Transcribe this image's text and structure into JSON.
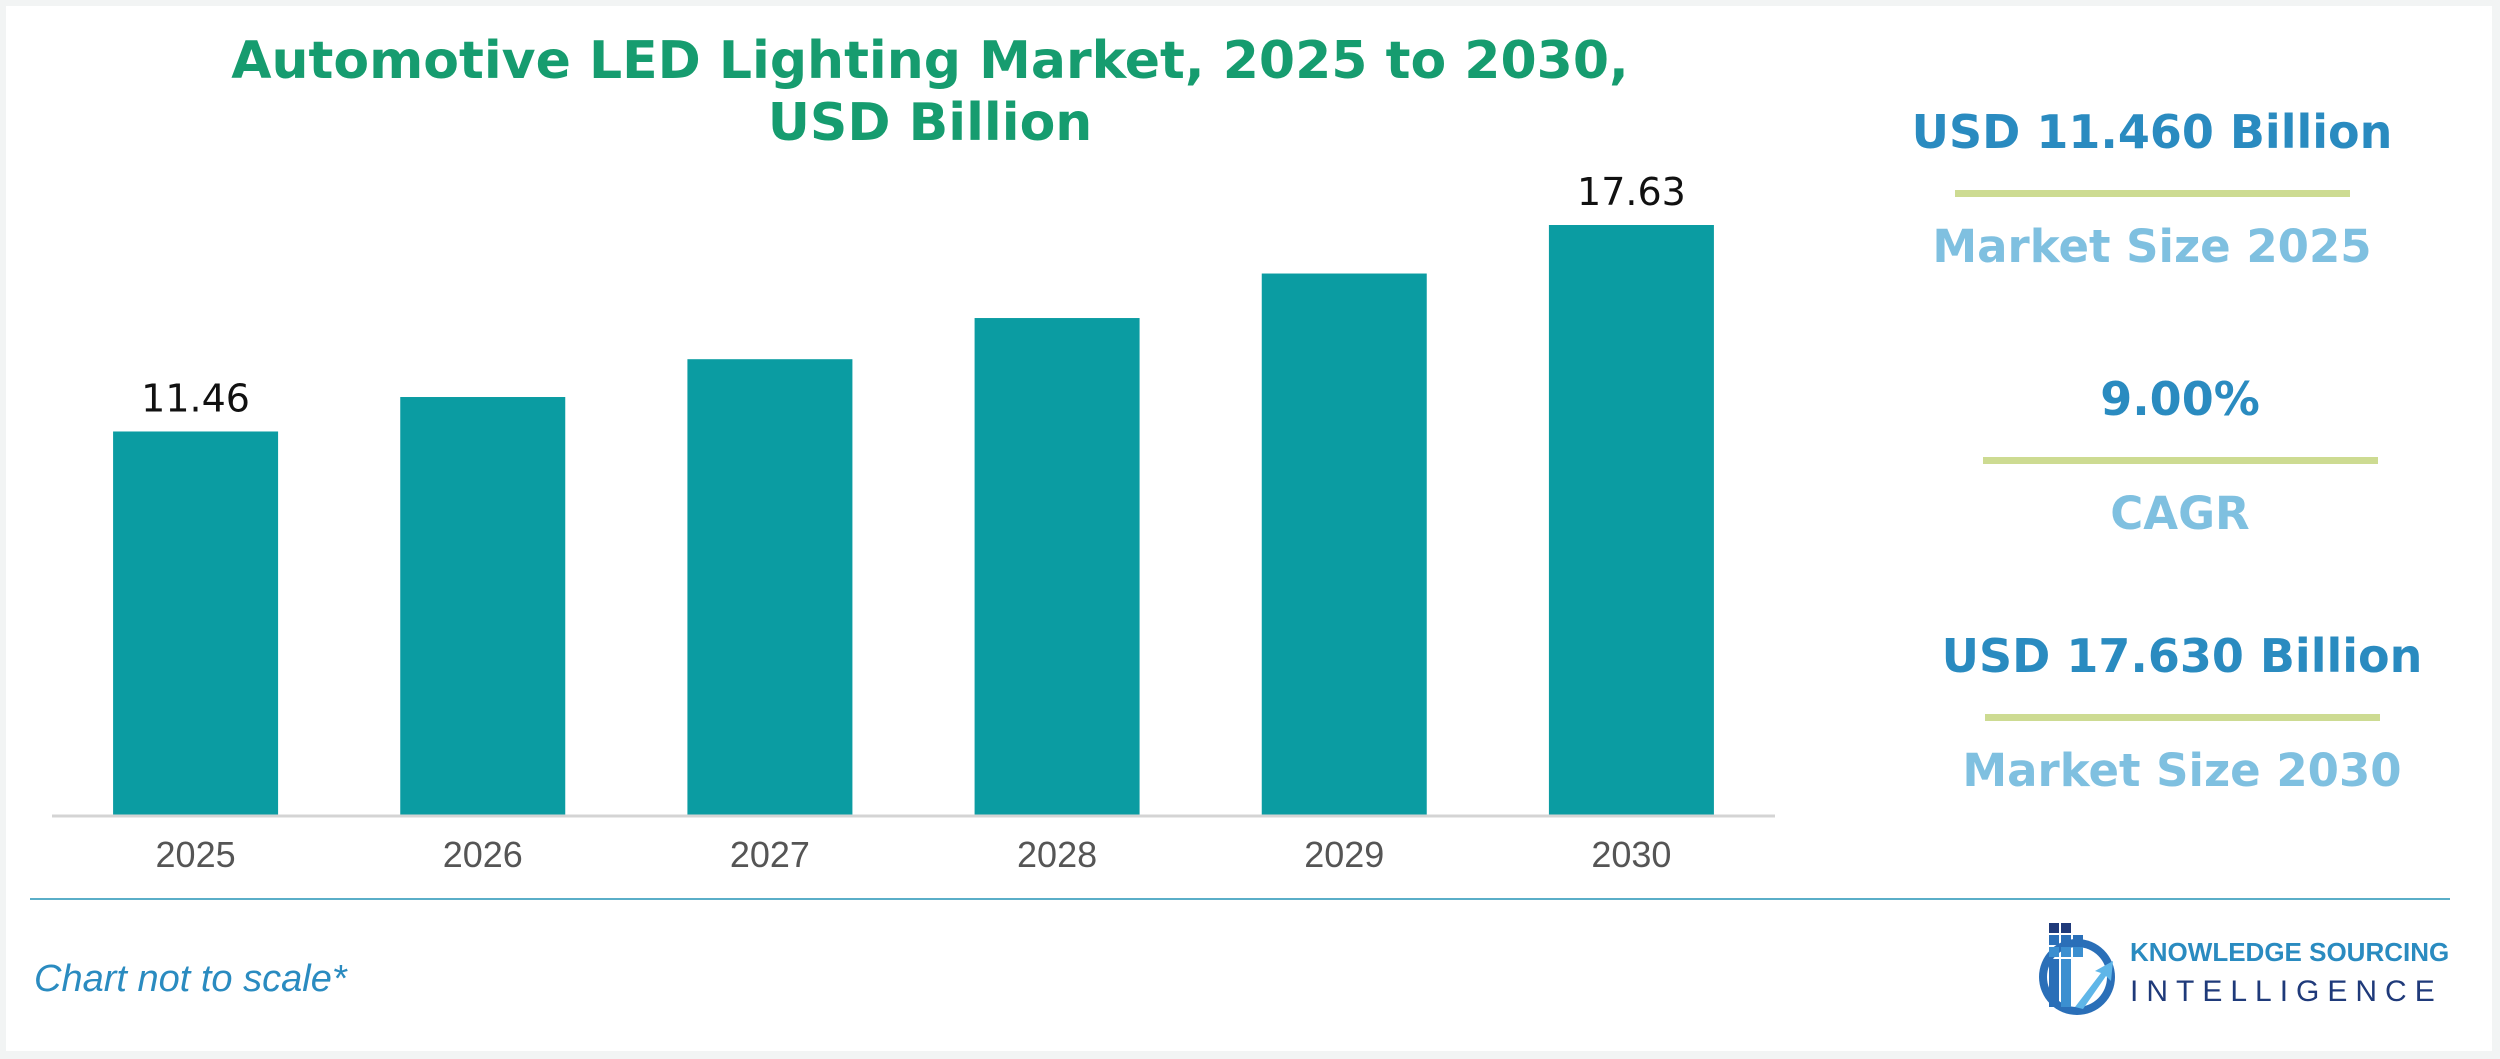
{
  "chart_data": {
    "type": "bar",
    "title": "Automotive LED Lighting Market, 2025 to 2030, USD Billion",
    "title_lines": [
      "Automotive LED Lighting Market, 2025 to 2030,",
      "USD Billion"
    ],
    "categories": [
      "2025",
      "2026",
      "2027",
      "2028",
      "2029",
      "2030"
    ],
    "values": [
      11.46,
      12.49,
      13.62,
      14.85,
      16.18,
      17.63
    ],
    "data_labels": [
      "11.46",
      "",
      "",
      "",
      "",
      "17.63"
    ],
    "xlabel": "",
    "ylabel": "",
    "ylim": [
      0,
      17.63
    ],
    "grid": false,
    "bar_color": "#0b9ca2"
  },
  "kpis": [
    {
      "value": "USD 11.460 Billion",
      "label": "Market Size 2025"
    },
    {
      "value": "9.00%",
      "label": "CAGR"
    },
    {
      "value": "USD 17.630 Billion",
      "label": "Market Size 2030"
    }
  ],
  "footer": {
    "note": "Chart not to scale*",
    "logo_line1": "KNOWLEDGE SOURCING",
    "logo_line2": "INTELLIGENCE",
    "logo_icon": "building-arrow-icon"
  },
  "colors": {
    "title": "#169c6f",
    "kpi_value": "#2a8bc0",
    "kpi_label": "#7fc0e0",
    "kpi_rule": "#cddb92"
  }
}
